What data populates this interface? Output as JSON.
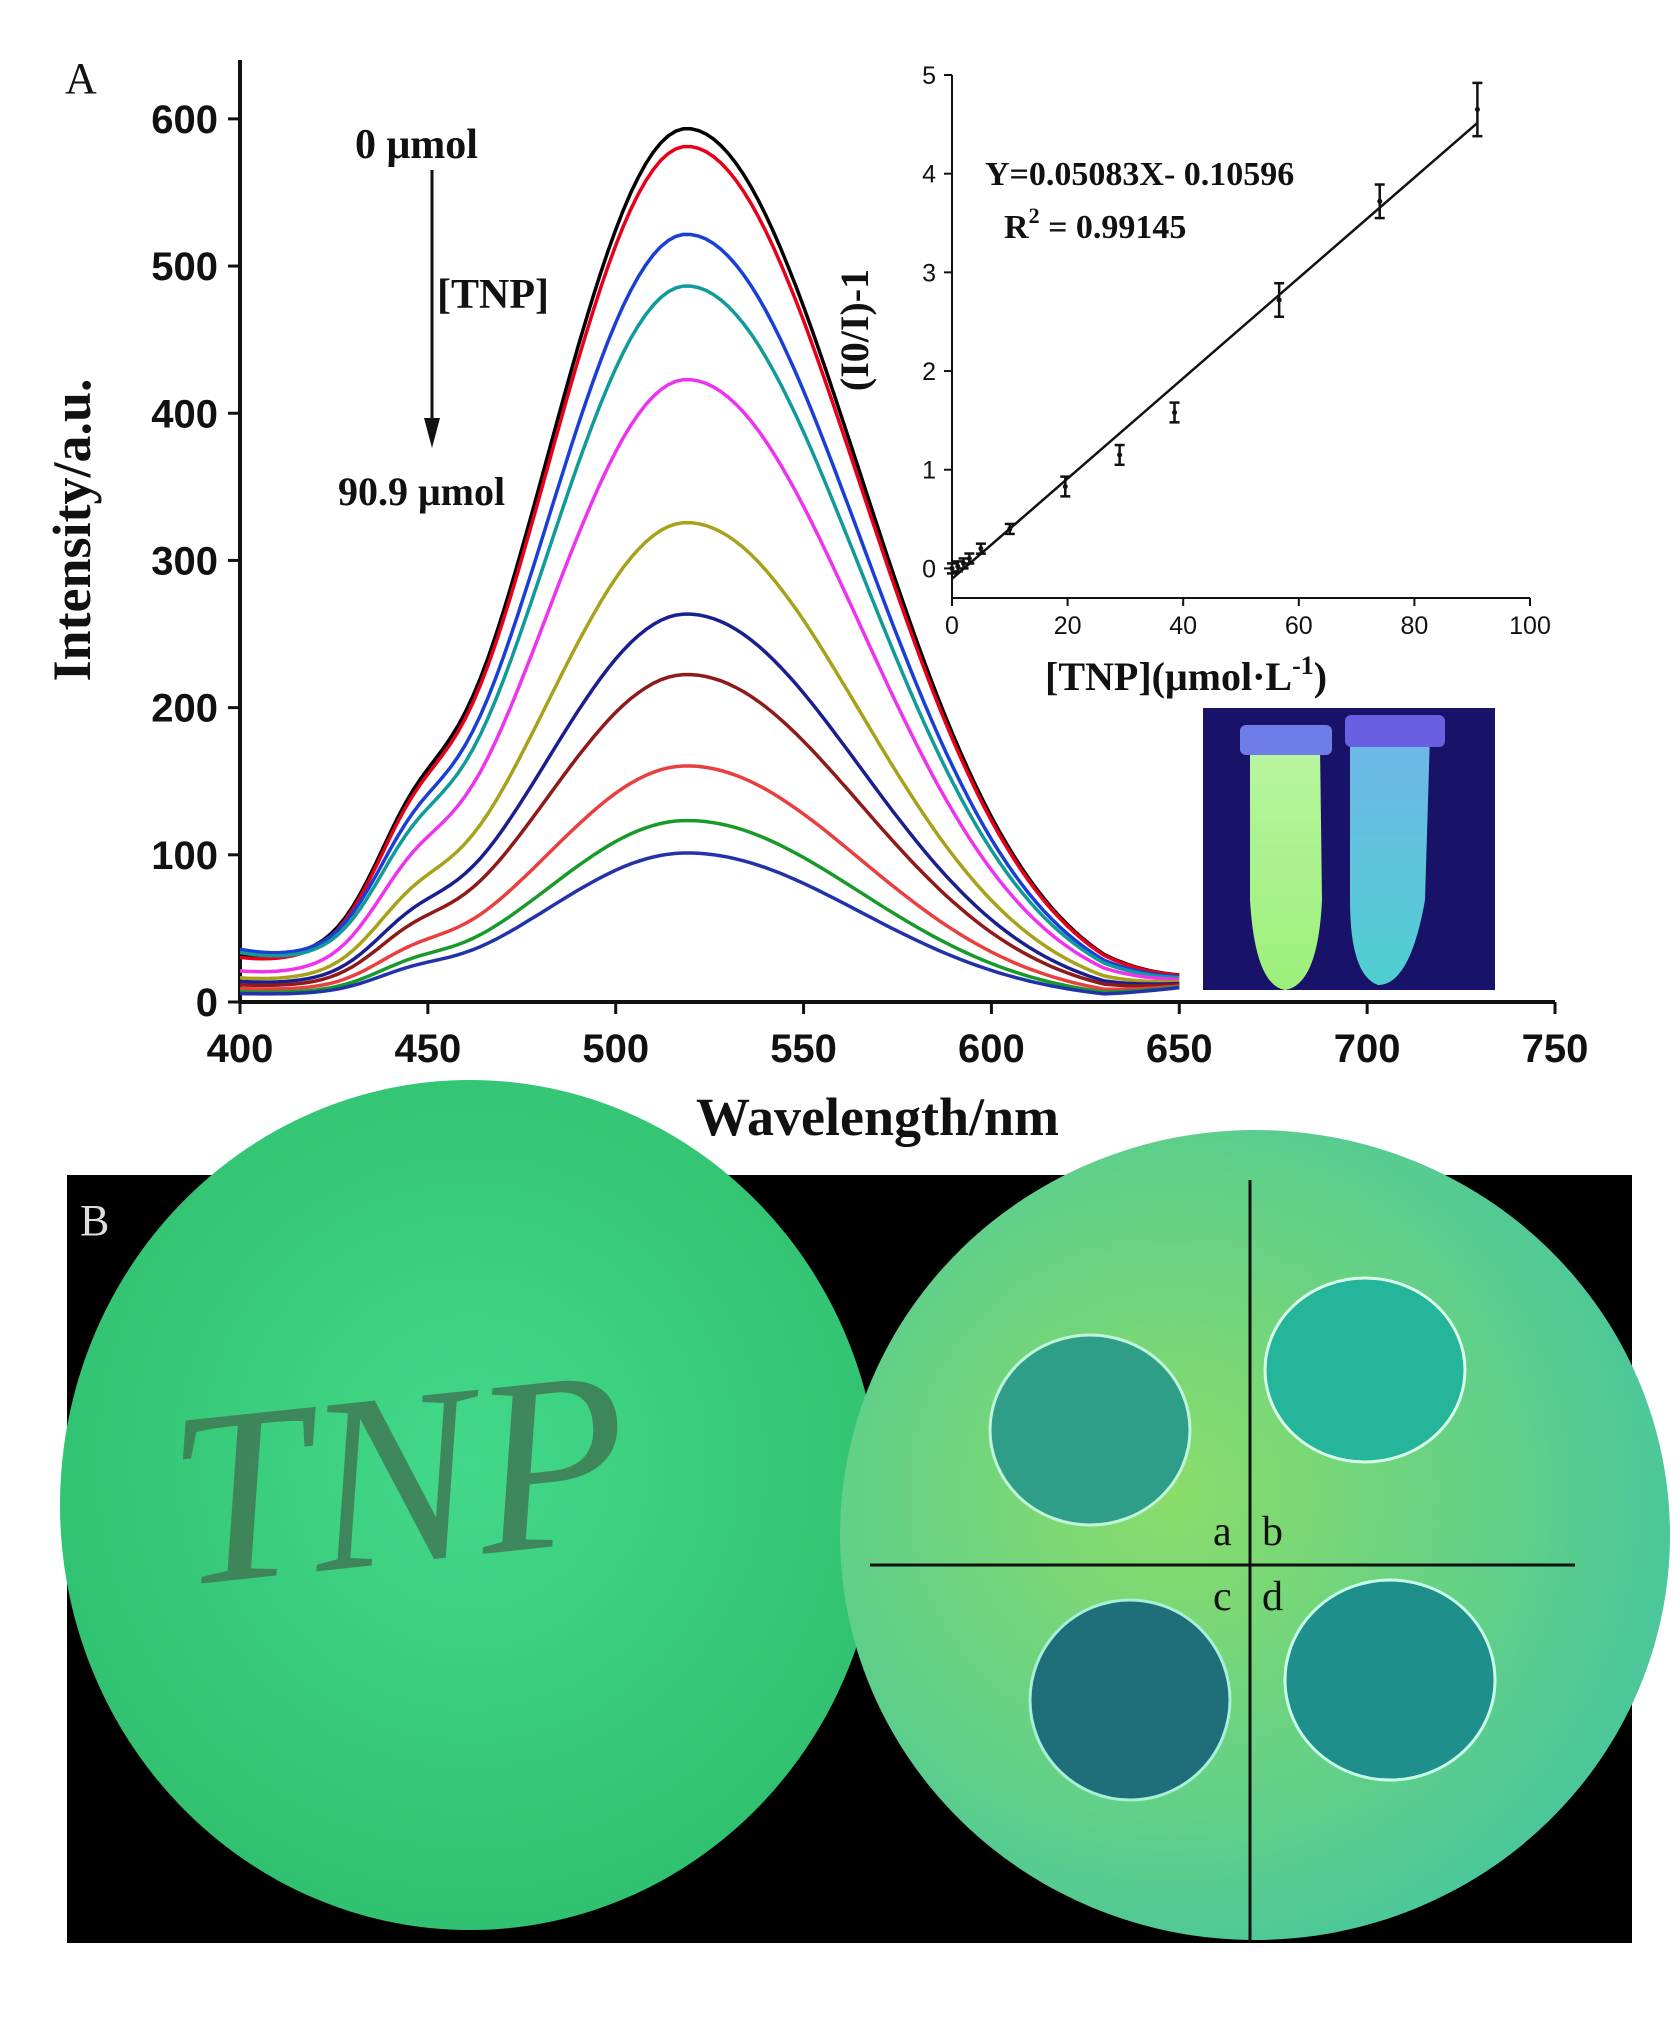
{
  "panel_a": {
    "label": "A",
    "annotations": {
      "start": "0 μmol",
      "arrow_label": "[TNP]",
      "end": "90.9 μmol"
    }
  },
  "panel_b": {
    "label": "B",
    "written_text": "TNP",
    "quadrant_labels": [
      "a",
      "b",
      "c",
      "d"
    ]
  },
  "inset": {
    "equation": "Y=0.05083X- 0.10596",
    "r2_prefix": "R",
    "r2_sup": "2",
    "r2_value": " = 0.99145"
  },
  "colors": {
    "series": [
      "#000000",
      "#e8001a",
      "#1a3fd6",
      "#119a9a",
      "#ee33ee",
      "#a8a11a",
      "#1a1f8f",
      "#8f1a1a",
      "#e84040",
      "#189a2a",
      "#2233aa"
    ]
  },
  "chart_data": [
    {
      "type": "line",
      "title": "",
      "xlabel": "Wavelength/nm",
      "ylabel": "Intensity/a.u.",
      "xlim": [
        400,
        750
      ],
      "ylim": [
        0,
        640
      ],
      "xticks": [
        400,
        450,
        500,
        550,
        600,
        650,
        700,
        750
      ],
      "yticks": [
        0,
        100,
        200,
        300,
        400,
        500,
        600
      ],
      "legend": "none",
      "grid": false,
      "peak_wavelength": 519,
      "x_range": [
        400,
        650
      ],
      "series_peaks": [
        592,
        580,
        520,
        485,
        422,
        325,
        263,
        222,
        160,
        123,
        101
      ],
      "series_base_at_400": [
        28,
        26,
        32,
        30,
        18,
        14,
        12,
        10,
        8,
        6,
        5
      ]
    },
    {
      "type": "scatter",
      "title": "",
      "xlabel": "[TNP](μmol·L",
      "xlabel_sup": "-1",
      "xlabel_close": ")",
      "ylabel": "(I0/I)-1",
      "xlim": [
        0,
        100
      ],
      "ylim": [
        -0.3,
        5
      ],
      "xticks": [
        0,
        20,
        40,
        60,
        80,
        100
      ],
      "yticks": [
        0,
        1,
        2,
        3,
        4,
        5
      ],
      "points": [
        {
          "x": 0,
          "y": 0.0,
          "err": 0.05
        },
        {
          "x": 1,
          "y": 0.02,
          "err": 0.05
        },
        {
          "x": 2,
          "y": 0.05,
          "err": 0.05
        },
        {
          "x": 3,
          "y": 0.1,
          "err": 0.05
        },
        {
          "x": 5,
          "y": 0.2,
          "err": 0.05
        },
        {
          "x": 10,
          "y": 0.4,
          "err": 0.05
        },
        {
          "x": 19.6,
          "y": 0.83,
          "err": 0.1
        },
        {
          "x": 29,
          "y": 1.15,
          "err": 0.1
        },
        {
          "x": 38.5,
          "y": 1.58,
          "err": 0.1
        },
        {
          "x": 56.6,
          "y": 2.72,
          "err": 0.17
        },
        {
          "x": 74,
          "y": 3.72,
          "err": 0.17
        },
        {
          "x": 90.9,
          "y": 4.65,
          "err": 0.27
        }
      ],
      "fit": {
        "slope": 0.05083,
        "intercept": -0.10596,
        "x_range": [
          0,
          90.9
        ]
      }
    }
  ]
}
